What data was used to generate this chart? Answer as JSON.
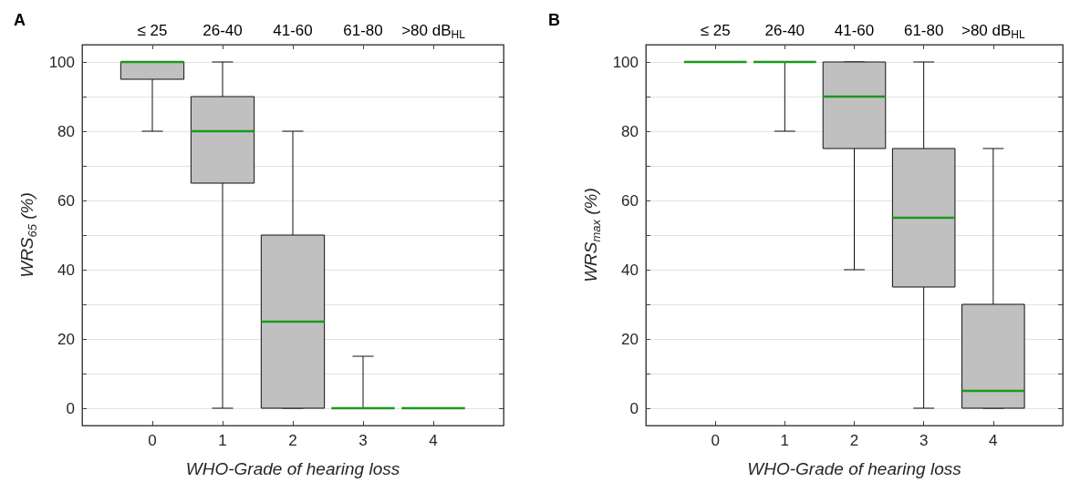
{
  "chart_data": [
    {
      "type": "box",
      "title": "A",
      "xlabel": "WHO-Grade of hearing loss",
      "ylabel": "WRS$_{65}$ (%)",
      "categories": [
        "0",
        "1",
        "2",
        "3",
        "4"
      ],
      "annotations": [
        "≤ 25",
        "26-40",
        "41-60",
        "61-80",
        ">80 dB$_{HL}$"
      ],
      "ylim": [
        -5,
        105
      ],
      "yticks": [
        0,
        {
          "value": 10,
          "label": null
        },
        20,
        {
          "value": 30,
          "label": null
        },
        40,
        {
          "value": 50,
          "label": null
        },
        60,
        {
          "value": 70,
          "label": null
        },
        80,
        {
          "value": 90,
          "label": null
        },
        100
      ],
      "grid": "y",
      "series": [
        {
          "color": "#c0c0c0",
          "boxes": [
            {
              "low": 80,
              "q1": 95,
              "median": 100,
              "q3": 100,
              "high": 100
            },
            {
              "low": 0,
              "q1": 65,
              "median": 80,
              "q3": 90,
              "high": 100
            },
            {
              "low": 0,
              "q1": 0,
              "median": 25,
              "q3": 50,
              "high": 80
            },
            {
              "low": 0,
              "q1": 0,
              "median": 0,
              "q3": 0,
              "high": 15
            },
            {
              "low": 0,
              "q1": 0,
              "median": 0,
              "q3": 0,
              "high": 0
            }
          ]
        }
      ]
    },
    {
      "type": "box",
      "title": "B",
      "xlabel": "WHO-Grade of hearing loss",
      "ylabel": "WRS$_{max}$ (%)",
      "categories": [
        "0",
        "1",
        "2",
        "3",
        "4"
      ],
      "annotations": [
        "≤ 25",
        "26-40",
        "41-60",
        "61-80",
        ">80 dB$_{HL}$"
      ],
      "ylim": [
        -5,
        105
      ],
      "yticks": [
        0,
        {
          "value": 10,
          "label": null
        },
        20,
        {
          "value": 30,
          "label": null
        },
        40,
        {
          "value": 50,
          "label": null
        },
        60,
        {
          "value": 70,
          "label": null
        },
        80,
        {
          "value": 90,
          "label": null
        },
        100
      ],
      "grid": "y",
      "series": [
        {
          "color": "#c0c0c0",
          "boxes": [
            {
              "low": 100,
              "q1": 100,
              "median": 100,
              "q3": 100,
              "high": 100
            },
            {
              "low": 80,
              "q1": 100,
              "median": 100,
              "q3": 100,
              "high": 100
            },
            {
              "low": 40,
              "q1": 75,
              "median": 90,
              "q3": 100,
              "high": 100
            },
            {
              "low": 0,
              "q1": 35,
              "median": 55,
              "q3": 75,
              "high": 100
            },
            {
              "low": 0,
              "q1": 0,
              "median": 5,
              "q3": 30,
              "high": 75
            }
          ]
        }
      ]
    }
  ]
}
